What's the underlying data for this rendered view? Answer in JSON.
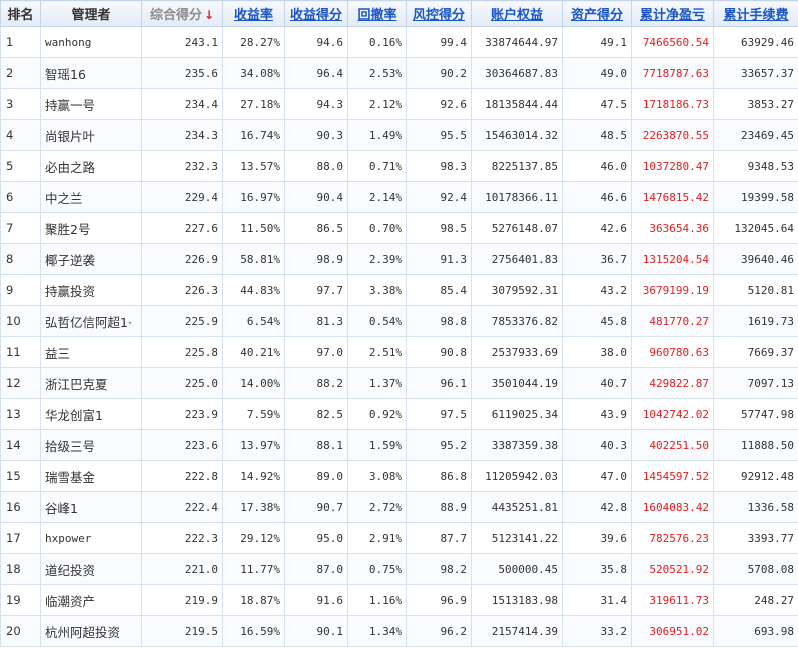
{
  "headers": {
    "rank": "排名",
    "manager": "管理者",
    "total_score": "综合得分",
    "sort_arrow": "↓",
    "return_rate": "收益率",
    "return_score": "收益得分",
    "drawdown": "回撤率",
    "risk_score": "风控得分",
    "equity": "账户权益",
    "asset_score": "资产得分",
    "cum_pnl": "累计净盈亏",
    "cum_fee": "累计手续费"
  },
  "accent_color": "#e02020",
  "link_color": "#1a55c9",
  "rows": [
    {
      "rank": "1",
      "manager": "wanhong",
      "total_score": "243.1",
      "return_rate": "28.27%",
      "return_score": "94.6",
      "drawdown": "0.16%",
      "risk_score": "99.4",
      "equity": "33874644.97",
      "asset_score": "49.1",
      "cum_pnl": "7466560.54",
      "cum_fee": "63929.46"
    },
    {
      "rank": "2",
      "manager": "智瑶16",
      "total_score": "235.6",
      "return_rate": "34.08%",
      "return_score": "96.4",
      "drawdown": "2.53%",
      "risk_score": "90.2",
      "equity": "30364687.83",
      "asset_score": "49.0",
      "cum_pnl": "7718787.63",
      "cum_fee": "33657.37"
    },
    {
      "rank": "3",
      "manager": "持赢一号",
      "total_score": "234.4",
      "return_rate": "27.18%",
      "return_score": "94.3",
      "drawdown": "2.12%",
      "risk_score": "92.6",
      "equity": "18135844.44",
      "asset_score": "47.5",
      "cum_pnl": "1718186.73",
      "cum_fee": "3853.27"
    },
    {
      "rank": "4",
      "manager": "尚银片叶",
      "total_score": "234.3",
      "return_rate": "16.74%",
      "return_score": "90.3",
      "drawdown": "1.49%",
      "risk_score": "95.5",
      "equity": "15463014.32",
      "asset_score": "48.5",
      "cum_pnl": "2263870.55",
      "cum_fee": "23469.45"
    },
    {
      "rank": "5",
      "manager": "必由之路",
      "total_score": "232.3",
      "return_rate": "13.57%",
      "return_score": "88.0",
      "drawdown": "0.71%",
      "risk_score": "98.3",
      "equity": "8225137.85",
      "asset_score": "46.0",
      "cum_pnl": "1037280.47",
      "cum_fee": "9348.53"
    },
    {
      "rank": "6",
      "manager": "中之兰",
      "total_score": "229.4",
      "return_rate": "16.97%",
      "return_score": "90.4",
      "drawdown": "2.14%",
      "risk_score": "92.4",
      "equity": "10178366.11",
      "asset_score": "46.6",
      "cum_pnl": "1476815.42",
      "cum_fee": "19399.58"
    },
    {
      "rank": "7",
      "manager": "聚胜2号",
      "total_score": "227.6",
      "return_rate": "11.50%",
      "return_score": "86.5",
      "drawdown": "0.70%",
      "risk_score": "98.5",
      "equity": "5276148.07",
      "asset_score": "42.6",
      "cum_pnl": "363654.36",
      "cum_fee": "132045.64"
    },
    {
      "rank": "8",
      "manager": "椰子逆袭",
      "total_score": "226.9",
      "return_rate": "58.81%",
      "return_score": "98.9",
      "drawdown": "2.39%",
      "risk_score": "91.3",
      "equity": "2756401.83",
      "asset_score": "36.7",
      "cum_pnl": "1315204.54",
      "cum_fee": "39640.46"
    },
    {
      "rank": "9",
      "manager": "持赢投资",
      "total_score": "226.3",
      "return_rate": "44.83%",
      "return_score": "97.7",
      "drawdown": "3.38%",
      "risk_score": "85.4",
      "equity": "3079592.31",
      "asset_score": "43.2",
      "cum_pnl": "3679199.19",
      "cum_fee": "5120.81"
    },
    {
      "rank": "10",
      "manager": "弘哲亿信阿超1·",
      "total_score": "225.9",
      "return_rate": "6.54%",
      "return_score": "81.3",
      "drawdown": "0.54%",
      "risk_score": "98.8",
      "equity": "7853376.82",
      "asset_score": "45.8",
      "cum_pnl": "481770.27",
      "cum_fee": "1619.73"
    },
    {
      "rank": "11",
      "manager": "益三",
      "total_score": "225.8",
      "return_rate": "40.21%",
      "return_score": "97.0",
      "drawdown": "2.51%",
      "risk_score": "90.8",
      "equity": "2537933.69",
      "asset_score": "38.0",
      "cum_pnl": "960780.63",
      "cum_fee": "7669.37"
    },
    {
      "rank": "12",
      "manager": "浙江巴克夏",
      "total_score": "225.0",
      "return_rate": "14.00%",
      "return_score": "88.2",
      "drawdown": "1.37%",
      "risk_score": "96.1",
      "equity": "3501044.19",
      "asset_score": "40.7",
      "cum_pnl": "429822.87",
      "cum_fee": "7097.13"
    },
    {
      "rank": "13",
      "manager": "华龙创富1",
      "total_score": "223.9",
      "return_rate": "7.59%",
      "return_score": "82.5",
      "drawdown": "0.92%",
      "risk_score": "97.5",
      "equity": "6119025.34",
      "asset_score": "43.9",
      "cum_pnl": "1042742.02",
      "cum_fee": "57747.98"
    },
    {
      "rank": "14",
      "manager": "拾级三号",
      "total_score": "223.6",
      "return_rate": "13.97%",
      "return_score": "88.1",
      "drawdown": "1.59%",
      "risk_score": "95.2",
      "equity": "3387359.38",
      "asset_score": "40.3",
      "cum_pnl": "402251.50",
      "cum_fee": "11888.50"
    },
    {
      "rank": "15",
      "manager": "瑞雪基金",
      "total_score": "222.8",
      "return_rate": "14.92%",
      "return_score": "89.0",
      "drawdown": "3.08%",
      "risk_score": "86.8",
      "equity": "11205942.03",
      "asset_score": "47.0",
      "cum_pnl": "1454597.52",
      "cum_fee": "92912.48"
    },
    {
      "rank": "16",
      "manager": "谷峰1",
      "total_score": "222.4",
      "return_rate": "17.38%",
      "return_score": "90.7",
      "drawdown": "2.72%",
      "risk_score": "88.9",
      "equity": "4435251.81",
      "asset_score": "42.8",
      "cum_pnl": "1604083.42",
      "cum_fee": "1336.58"
    },
    {
      "rank": "17",
      "manager": "hxpower",
      "total_score": "222.3",
      "return_rate": "29.12%",
      "return_score": "95.0",
      "drawdown": "2.91%",
      "risk_score": "87.7",
      "equity": "5123141.22",
      "asset_score": "39.6",
      "cum_pnl": "782576.23",
      "cum_fee": "3393.77"
    },
    {
      "rank": "18",
      "manager": "道纪投资",
      "total_score": "221.0",
      "return_rate": "11.77%",
      "return_score": "87.0",
      "drawdown": "0.75%",
      "risk_score": "98.2",
      "equity": "500000.45",
      "asset_score": "35.8",
      "cum_pnl": "520521.92",
      "cum_fee": "5708.08"
    },
    {
      "rank": "19",
      "manager": "临潮资产",
      "total_score": "219.9",
      "return_rate": "18.87%",
      "return_score": "91.6",
      "drawdown": "1.16%",
      "risk_score": "96.9",
      "equity": "1513183.98",
      "asset_score": "31.4",
      "cum_pnl": "319611.73",
      "cum_fee": "248.27"
    },
    {
      "rank": "20",
      "manager": "杭州阿超投资",
      "total_score": "219.5",
      "return_rate": "16.59%",
      "return_score": "90.1",
      "drawdown": "1.34%",
      "risk_score": "96.2",
      "equity": "2157414.39",
      "asset_score": "33.2",
      "cum_pnl": "306951.02",
      "cum_fee": "693.98"
    }
  ]
}
